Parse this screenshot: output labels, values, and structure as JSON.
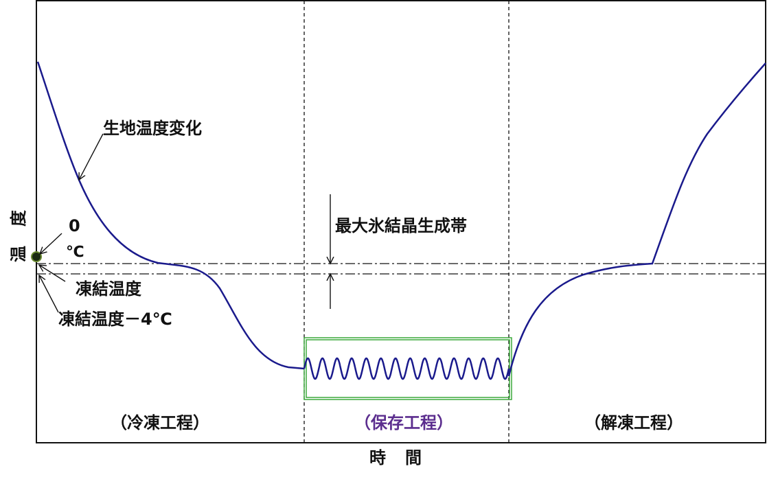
{
  "axes": {
    "y_label": "温度",
    "x_label": "時間"
  },
  "annotations": {
    "curve": "生地温度変化",
    "zero": "0",
    "zero_unit": "℃",
    "freezing": "凍結温度",
    "freezing_minus4": "凍結温度－4℃",
    "ice_zone": "最大氷結晶生成帯"
  },
  "phases": [
    "（冷凍工程）",
    "（保存工程）",
    "（解凍工程）"
  ]
}
